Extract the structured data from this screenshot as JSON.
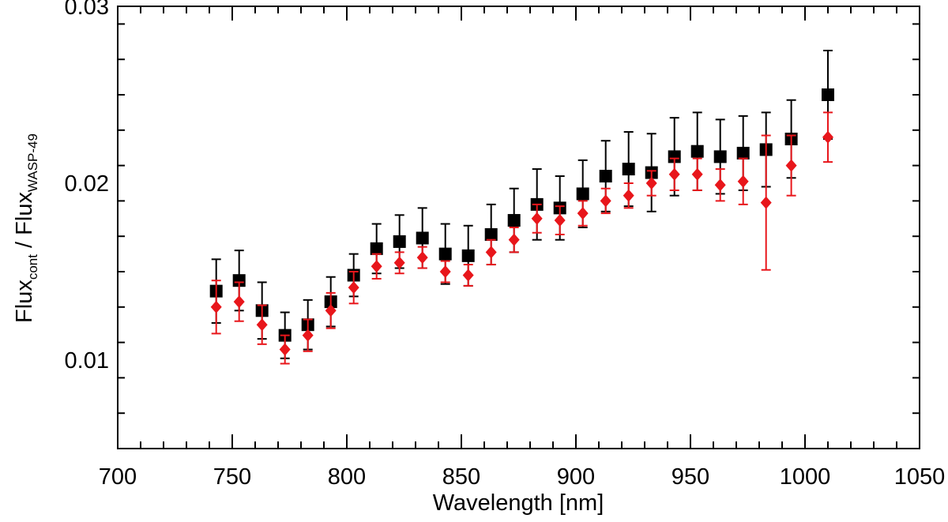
{
  "chart_data": {
    "type": "scatter",
    "title": "",
    "xlabel": "Wavelength [nm]",
    "ylabel": {
      "base1": "Flux",
      "sub1": "cont",
      "sep": " / ",
      "base2": "Flux",
      "sub2": "WASP-49"
    },
    "xlim": [
      700,
      1050
    ],
    "ylim": [
      0.005,
      0.03
    ],
    "x_ticks": [
      700,
      750,
      800,
      850,
      900,
      950,
      1000,
      1050
    ],
    "x_tick_labels": [
      "700",
      "750",
      "800",
      "850",
      "900",
      "950",
      "1000",
      "1050"
    ],
    "y_ticks": [
      0.01,
      0.02,
      0.03
    ],
    "y_tick_labels": [
      "0.01",
      "0.02",
      "0.03"
    ],
    "grid": false,
    "legend": "none",
    "series": [
      {
        "marker": "square",
        "color": "#000000",
        "x": [
          743,
          753,
          763,
          773,
          783,
          793,
          803,
          813,
          823,
          833,
          843,
          853,
          863,
          873,
          883,
          893,
          903,
          913,
          923,
          933,
          943,
          953,
          963,
          973,
          983,
          994,
          1010
        ],
        "y": [
          0.0139,
          0.0145,
          0.0128,
          0.0114,
          0.012,
          0.0133,
          0.0148,
          0.0163,
          0.0167,
          0.0169,
          0.016,
          0.0159,
          0.0171,
          0.0179,
          0.0188,
          0.0186,
          0.0194,
          0.0204,
          0.0208,
          0.0206,
          0.0215,
          0.0218,
          0.0215,
          0.0217,
          0.0219,
          0.0225,
          0.025
        ],
        "yerr": [
          0.0018,
          0.0017,
          0.0016,
          0.0013,
          0.0014,
          0.0014,
          0.0012,
          0.0014,
          0.0015,
          0.0017,
          0.0017,
          0.0017,
          0.0017,
          0.0018,
          0.002,
          0.0018,
          0.0019,
          0.002,
          0.0021,
          0.0022,
          0.0022,
          0.0022,
          0.0021,
          0.0021,
          0.0021,
          0.0022,
          0.0025
        ]
      },
      {
        "marker": "diamond",
        "color": "#e8161b",
        "x": [
          743,
          753,
          763,
          773,
          783,
          793,
          803,
          813,
          823,
          833,
          843,
          853,
          863,
          873,
          883,
          893,
          903,
          913,
          923,
          933,
          943,
          953,
          963,
          973,
          983,
          994,
          1010
        ],
        "y": [
          0.013,
          0.0133,
          0.012,
          0.0106,
          0.0114,
          0.0128,
          0.0141,
          0.0153,
          0.0155,
          0.0158,
          0.015,
          0.0148,
          0.0161,
          0.0168,
          0.018,
          0.0179,
          0.0183,
          0.019,
          0.0193,
          0.02,
          0.0205,
          0.0205,
          0.0199,
          0.0201,
          0.0189,
          0.021,
          0.0226
        ],
        "yerr": [
          0.0015,
          0.0011,
          0.0011,
          0.0008,
          0.0009,
          0.001,
          0.0009,
          0.0007,
          0.0006,
          0.0006,
          0.0006,
          0.0006,
          0.0007,
          0.0007,
          0.0008,
          0.0008,
          0.0007,
          0.0007,
          0.0007,
          0.0007,
          0.0009,
          0.0009,
          0.0009,
          0.0013,
          0.0038,
          0.0017,
          0.0014
        ]
      }
    ]
  }
}
